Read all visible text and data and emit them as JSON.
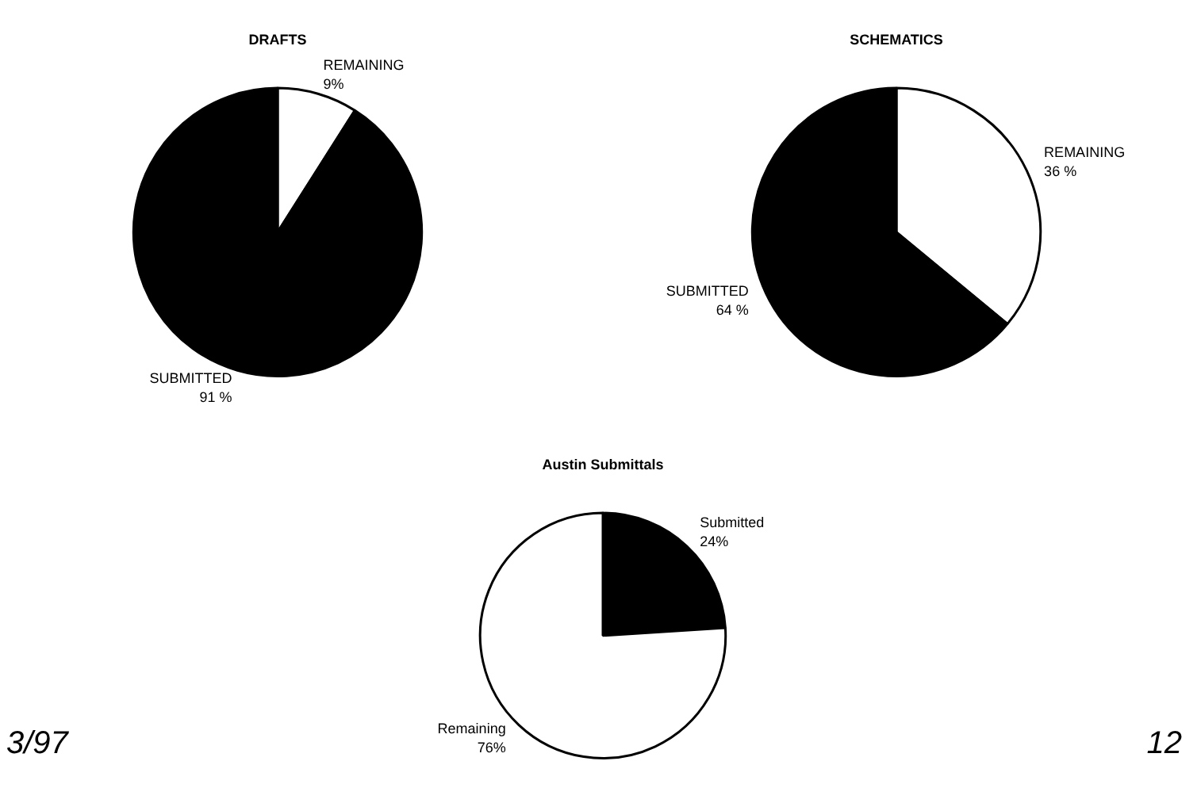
{
  "chart_data": [
    {
      "type": "pie",
      "title": "DRAFTS",
      "categories": [
        "REMAINING",
        "SUBMITTED"
      ],
      "values": [
        9,
        91
      ],
      "colors": [
        "#ffffff",
        "#000000"
      ],
      "value_labels": [
        "9%",
        "91 %"
      ],
      "legend": false
    },
    {
      "type": "pie",
      "title": "SCHEMATICS",
      "categories": [
        "REMAINING",
        "SUBMITTED"
      ],
      "values": [
        36,
        64
      ],
      "colors": [
        "#ffffff",
        "#000000"
      ],
      "value_labels": [
        "36 %",
        "64 %"
      ],
      "legend": false
    },
    {
      "type": "pie",
      "title": "Austin Submittals",
      "categories": [
        "Submitted",
        "Remaining"
      ],
      "values": [
        24,
        76
      ],
      "colors": [
        "#000000",
        "#ffffff"
      ],
      "value_labels": [
        "24%",
        "76%"
      ],
      "legend": false,
      "annotations": [
        "3/97",
        "12"
      ]
    }
  ]
}
